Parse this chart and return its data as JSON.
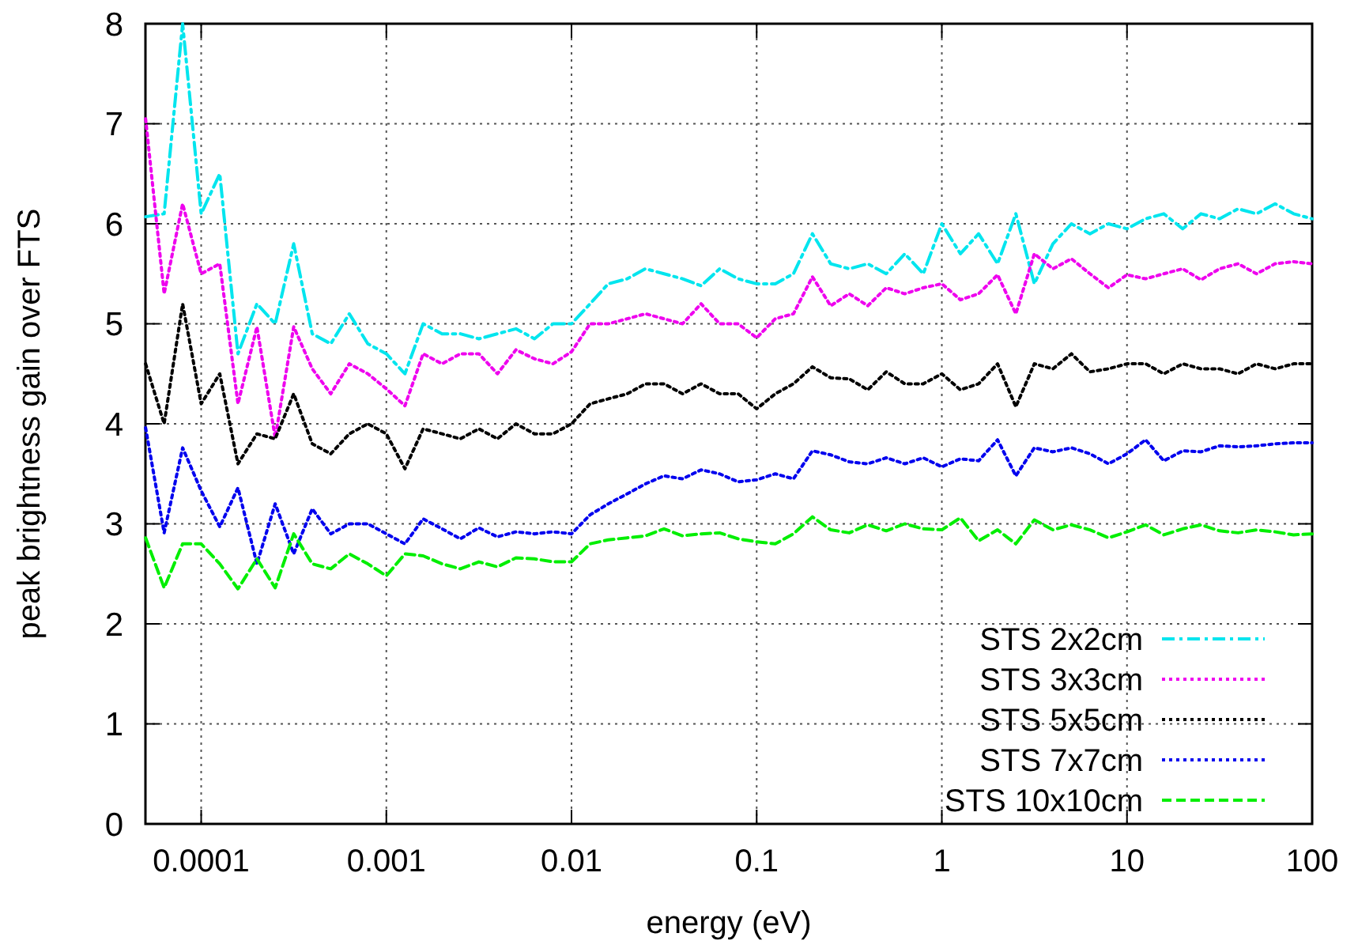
{
  "chart_data": {
    "type": "line",
    "xlabel": "energy (eV)",
    "ylabel": "peak brightness gain over FTS",
    "log": "x",
    "grid": true,
    "legend": "bottom right",
    "marker": "none",
    "xlim": [
      5e-05,
      100
    ],
    "xticks": [
      0.0001,
      0.001,
      0.01,
      0.1,
      1,
      10,
      100
    ],
    "ylim": [
      0,
      8
    ],
    "yticks": [
      0,
      1,
      2,
      3,
      4,
      5,
      6,
      7,
      8
    ],
    "x": [
      5.01e-05,
      6.31e-05,
      7.94e-05,
      0.0001,
      0.000126,
      0.000158,
      0.0002,
      0.000251,
      0.000316,
      0.000398,
      0.000501,
      0.000631,
      0.000794,
      0.001,
      0.00126,
      0.00158,
      0.002,
      0.00251,
      0.00316,
      0.00398,
      0.00501,
      0.00631,
      0.00794,
      0.01,
      0.0126,
      0.0158,
      0.02,
      0.0251,
      0.0316,
      0.0398,
      0.0501,
      0.0631,
      0.0794,
      0.1,
      0.126,
      0.158,
      0.2,
      0.251,
      0.316,
      0.398,
      0.501,
      0.631,
      0.794,
      1,
      1.26,
      1.58,
      2,
      2.51,
      3.16,
      3.98,
      5.01,
      6.31,
      7.94,
      10,
      12.6,
      15.8,
      20,
      25.1,
      31.6,
      39.8,
      50.1,
      63.1,
      79.4,
      100
    ],
    "series": [
      {
        "name": "STS 2x2cm",
        "color": "#00e5ee",
        "line_style": "dashdot",
        "values": [
          6.07,
          6.1,
          8.0,
          6.1,
          6.5,
          4.7,
          5.2,
          5.0,
          5.8,
          4.9,
          4.8,
          5.1,
          4.8,
          4.7,
          4.5,
          5.0,
          4.9,
          4.9,
          4.85,
          4.9,
          4.95,
          4.85,
          5.0,
          5.0,
          5.2,
          5.4,
          5.45,
          5.55,
          5.5,
          5.45,
          5.38,
          5.55,
          5.45,
          5.4,
          5.4,
          5.5,
          5.9,
          5.6,
          5.55,
          5.6,
          5.5,
          5.7,
          5.5,
          6.0,
          5.7,
          5.9,
          5.6,
          6.1,
          5.4,
          5.8,
          6.0,
          5.9,
          6.0,
          5.95,
          6.05,
          6.1,
          5.95,
          6.1,
          6.05,
          6.15,
          6.1,
          6.2,
          6.1,
          6.05
        ]
      },
      {
        "name": "STS 3x3cm",
        "color": "#ee00ee",
        "line_style": "dotted",
        "values": [
          7.05,
          5.3,
          6.2,
          5.5,
          5.6,
          4.2,
          4.97,
          3.86,
          4.97,
          4.55,
          4.3,
          4.6,
          4.5,
          4.35,
          4.18,
          4.7,
          4.6,
          4.7,
          4.7,
          4.5,
          4.74,
          4.65,
          4.6,
          4.72,
          5.0,
          5.0,
          5.05,
          5.1,
          5.05,
          5.0,
          5.2,
          5.0,
          5.0,
          4.86,
          5.05,
          5.1,
          5.47,
          5.18,
          5.3,
          5.18,
          5.36,
          5.3,
          5.36,
          5.4,
          5.24,
          5.3,
          5.49,
          5.1,
          5.7,
          5.55,
          5.65,
          5.5,
          5.36,
          5.49,
          5.45,
          5.5,
          5.55,
          5.44,
          5.55,
          5.6,
          5.5,
          5.6,
          5.62,
          5.6
        ]
      },
      {
        "name": "STS 5x5cm",
        "color": "#000000",
        "line_style": "dotted",
        "values": [
          4.6,
          4.0,
          5.2,
          4.2,
          4.5,
          3.6,
          3.9,
          3.85,
          4.3,
          3.8,
          3.7,
          3.9,
          4.0,
          3.9,
          3.55,
          3.95,
          3.9,
          3.85,
          3.95,
          3.85,
          4.0,
          3.9,
          3.9,
          4.0,
          4.2,
          4.25,
          4.3,
          4.4,
          4.4,
          4.3,
          4.4,
          4.3,
          4.3,
          4.15,
          4.3,
          4.4,
          4.57,
          4.46,
          4.45,
          4.34,
          4.52,
          4.4,
          4.4,
          4.5,
          4.34,
          4.4,
          4.6,
          4.17,
          4.6,
          4.55,
          4.7,
          4.52,
          4.55,
          4.6,
          4.6,
          4.5,
          4.6,
          4.55,
          4.55,
          4.5,
          4.6,
          4.55,
          4.6,
          4.6
        ]
      },
      {
        "name": "STS 7x7cm",
        "color": "#0000ee",
        "line_style": "dotted",
        "values": [
          3.96,
          2.91,
          3.76,
          3.33,
          2.97,
          3.36,
          2.6,
          3.2,
          2.7,
          3.15,
          2.9,
          3.0,
          3.0,
          2.9,
          2.8,
          3.05,
          2.95,
          2.85,
          2.96,
          2.87,
          2.92,
          2.9,
          2.92,
          2.9,
          3.09,
          3.2,
          3.3,
          3.4,
          3.48,
          3.45,
          3.54,
          3.5,
          3.42,
          3.44,
          3.5,
          3.45,
          3.73,
          3.69,
          3.62,
          3.6,
          3.66,
          3.6,
          3.66,
          3.57,
          3.65,
          3.63,
          3.84,
          3.48,
          3.76,
          3.72,
          3.76,
          3.7,
          3.6,
          3.7,
          3.84,
          3.63,
          3.73,
          3.72,
          3.78,
          3.77,
          3.78,
          3.8,
          3.81,
          3.81
        ]
      },
      {
        "name": "STS 10x10cm",
        "color": "#00ee00",
        "line_style": "dashed",
        "values": [
          2.86,
          2.36,
          2.8,
          2.8,
          2.6,
          2.35,
          2.65,
          2.36,
          2.9,
          2.6,
          2.55,
          2.7,
          2.6,
          2.48,
          2.7,
          2.68,
          2.6,
          2.55,
          2.62,
          2.57,
          2.66,
          2.65,
          2.62,
          2.62,
          2.8,
          2.84,
          2.86,
          2.88,
          2.95,
          2.88,
          2.9,
          2.91,
          2.85,
          2.82,
          2.8,
          2.9,
          3.07,
          2.94,
          2.91,
          2.99,
          2.93,
          3.0,
          2.95,
          2.94,
          3.06,
          2.83,
          2.94,
          2.8,
          3.04,
          2.94,
          2.99,
          2.94,
          2.86,
          2.92,
          2.99,
          2.89,
          2.95,
          2.99,
          2.93,
          2.91,
          2.94,
          2.92,
          2.89,
          2.9
        ]
      }
    ]
  }
}
